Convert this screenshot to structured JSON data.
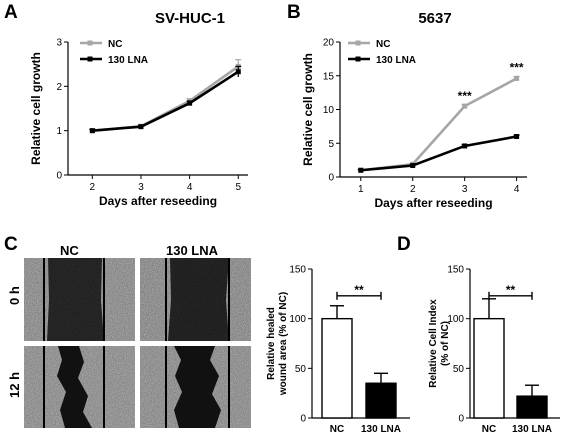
{
  "figure": {
    "panels": {
      "A": {
        "label": "A",
        "title": "SV-HUC-1"
      },
      "B": {
        "label": "B",
        "title": "5637"
      },
      "C": {
        "label": "C",
        "columns": [
          "NC",
          "130 LNA"
        ],
        "rows": [
          "0 h",
          "12 h"
        ]
      },
      "D": {
        "label": "D"
      }
    }
  },
  "chart_data": [
    {
      "id": "A",
      "type": "line",
      "title": "SV-HUC-1",
      "xlabel": "Days after reseeding",
      "ylabel": "Relative cell growth",
      "x": [
        2,
        3,
        4,
        5
      ],
      "xlim": [
        1.5,
        5.2
      ],
      "ylim": [
        0,
        3
      ],
      "yticks": [
        0,
        1,
        2,
        3
      ],
      "xticks": [
        2,
        3,
        4,
        5
      ],
      "legend_loc": "top-left",
      "series": [
        {
          "name": "NC",
          "color": "#a6a6a6",
          "values": [
            1.0,
            1.1,
            1.67,
            2.45
          ],
          "errors": [
            0.03,
            0.03,
            0.05,
            0.15
          ]
        },
        {
          "name": "130 LNA",
          "color": "#000000",
          "values": [
            1.0,
            1.09,
            1.62,
            2.33
          ],
          "errors": [
            0.03,
            0.03,
            0.05,
            0.12
          ]
        }
      ],
      "annotations": []
    },
    {
      "id": "B",
      "type": "line",
      "title": "5637",
      "xlabel": "Days after reseeding",
      "ylabel": "Relative cell growth",
      "x": [
        1,
        2,
        3,
        4
      ],
      "xlim": [
        0.6,
        4.2
      ],
      "ylim": [
        0,
        20
      ],
      "yticks": [
        0,
        5,
        10,
        15,
        20
      ],
      "xticks": [
        1,
        2,
        3,
        4
      ],
      "legend_loc": "top-left",
      "series": [
        {
          "name": "NC",
          "color": "#a6a6a6",
          "values": [
            1.0,
            1.9,
            10.5,
            14.6
          ],
          "errors": [
            0.1,
            0.15,
            0.25,
            0.3
          ]
        },
        {
          "name": "130 LNA",
          "color": "#000000",
          "values": [
            1.0,
            1.7,
            4.6,
            6.0
          ],
          "errors": [
            0.1,
            0.1,
            0.2,
            0.2
          ]
        }
      ],
      "annotations": [
        {
          "x": 3,
          "y": 11.4,
          "text": "***"
        },
        {
          "x": 4,
          "y": 15.6,
          "text": "***"
        }
      ]
    },
    {
      "id": "C",
      "type": "bar",
      "ylabel_lines": [
        "Relative healed",
        "wound area (% of NC)"
      ],
      "categories": [
        "NC",
        "130 LNA"
      ],
      "values": [
        100,
        35
      ],
      "errors": [
        13,
        10
      ],
      "fills": [
        "#ffffff",
        "#000000"
      ],
      "ylim": [
        0,
        150
      ],
      "yticks": [
        0,
        50,
        100,
        150
      ],
      "significance": "**"
    },
    {
      "id": "D",
      "type": "bar",
      "ylabel_lines": [
        "Relative Cell Index",
        "(% of NC)"
      ],
      "categories": [
        "NC",
        "130 LNA"
      ],
      "values": [
        100,
        22
      ],
      "errors": [
        20,
        11
      ],
      "fills": [
        "#ffffff",
        "#000000"
      ],
      "ylim": [
        0,
        150
      ],
      "yticks": [
        0,
        50,
        100,
        150
      ],
      "significance": "**"
    }
  ]
}
